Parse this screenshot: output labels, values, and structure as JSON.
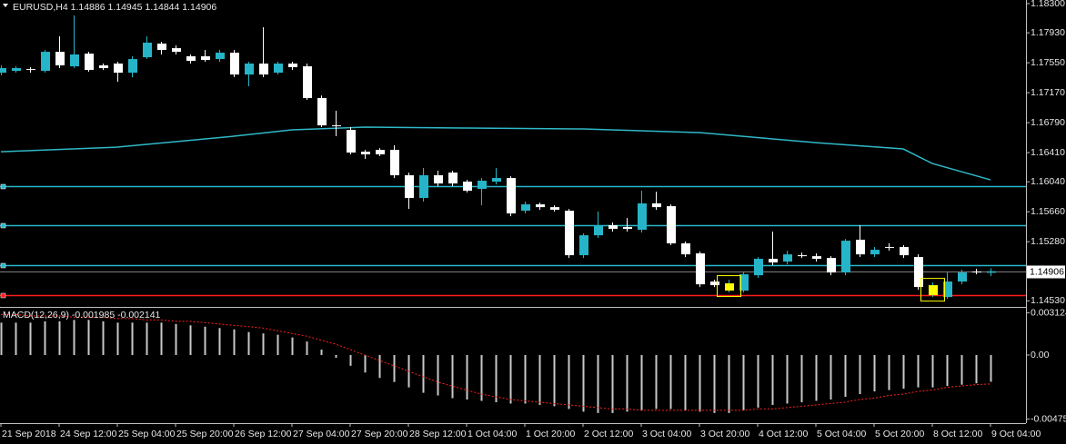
{
  "chart_data": [
    {
      "type": "candlestick",
      "title": "EURUSD,H4",
      "open": [
        1.17424,
        1.17447,
        1.1747,
        1.17447,
        1.17689,
        1.17505,
        1.17666,
        1.17517,
        1.1754,
        1.17424,
        1.1762,
        1.17793,
        1.17735,
        1.17632,
        1.17632,
        1.17597,
        1.17678,
        1.17401,
        1.1754,
        1.17424,
        1.1754,
        1.17505,
        1.17102,
        1.16756,
        1.16699,
        1.16422,
        1.16445,
        1.16445,
        1.16123,
        1.15835,
        1.16123,
        1.16157,
        1.16042,
        1.1595,
        1.16042,
        1.16088,
        1.15673,
        1.15754,
        1.15719,
        1.15673,
        1.15109,
        1.15362,
        1.15489,
        1.15466,
        1.15431,
        1.15766,
        1.15731,
        1.15259,
        1.15132,
        1.14775,
        1.1466,
        1.1466,
        1.14855,
        1.15063,
        1.15028,
        1.15109,
        1.15097,
        1.15074,
        1.1489,
        1.15305,
        1.1512,
        1.15213,
        1.15213,
        1.15086,
        1.14602,
        1.14579,
        1.14775,
        1.14902,
        1.14886
      ],
      "high": [
        1.17517,
        1.17505,
        1.17494,
        1.17712,
        1.17885,
        1.1815,
        1.17689,
        1.1754,
        1.17563,
        1.17632,
        1.17885,
        1.17816,
        1.1777,
        1.17655,
        1.17712,
        1.17712,
        1.17712,
        1.17563,
        1.18,
        1.17563,
        1.17563,
        1.1754,
        1.17136,
        1.16941,
        1.16733,
        1.16445,
        1.16468,
        1.16503,
        1.16157,
        1.16215,
        1.1618,
        1.1618,
        1.16065,
        1.16088,
        1.16215,
        1.16111,
        1.15789,
        1.15777,
        1.15742,
        1.15696,
        1.15385,
        1.15662,
        1.15524,
        1.15581,
        1.15927,
        1.15915,
        1.15754,
        1.15282,
        1.15155,
        1.14798,
        1.14798,
        1.1489,
        1.15086,
        1.15408,
        1.15166,
        1.15143,
        1.15132,
        1.15097,
        1.15316,
        1.15489,
        1.15213,
        1.15259,
        1.15236,
        1.1512,
        1.14763,
        1.1489,
        1.14925,
        1.14936,
        1.14945
      ],
      "low": [
        1.1739,
        1.17424,
        1.17424,
        1.17424,
        1.17482,
        1.17482,
        1.17436,
        1.17459,
        1.17309,
        1.17367,
        1.17597,
        1.17655,
        1.17655,
        1.1754,
        1.17563,
        1.17563,
        1.17367,
        1.17252,
        1.17367,
        1.17401,
        1.17459,
        1.17079,
        1.16733,
        1.16618,
        1.16388,
        1.1633,
        1.16365,
        1.16088,
        1.15696,
        1.15789,
        1.15984,
        1.15984,
        1.15904,
        1.15742,
        1.16007,
        1.15604,
        1.15639,
        1.15685,
        1.15662,
        1.15074,
        1.15074,
        1.15328,
        1.15408,
        1.15408,
        1.15397,
        1.15685,
        1.15236,
        1.15086,
        1.14706,
        1.14706,
        1.14637,
        1.14637,
        1.14821,
        1.14982,
        1.14994,
        1.15074,
        1.15028,
        1.14855,
        1.14855,
        1.15086,
        1.15086,
        1.15166,
        1.15074,
        1.14671,
        1.14579,
        1.14556,
        1.1474,
        1.14867,
        1.14844
      ],
      "close": [
        1.17482,
        1.17482,
        1.17459,
        1.17689,
        1.17517,
        1.17655,
        1.17459,
        1.17482,
        1.17424,
        1.17597,
        1.17805,
        1.17712,
        1.17689,
        1.17574,
        1.17586,
        1.17678,
        1.17401,
        1.1754,
        1.17401,
        1.1754,
        1.17494,
        1.17102,
        1.16756,
        1.16745,
        1.16411,
        1.16388,
        1.16388,
        1.16123,
        1.15835,
        1.16123,
        1.16019,
        1.16019,
        1.15927,
        1.16054,
        1.16088,
        1.15639,
        1.15754,
        1.15719,
        1.15685,
        1.15109,
        1.15362,
        1.15489,
        1.15443,
        1.15443,
        1.15766,
        1.15719,
        1.15259,
        1.1512,
        1.1474,
        1.14729,
        1.14752,
        1.14867,
        1.15063,
        1.15017,
        1.1512,
        1.15097,
        1.15063,
        1.1489,
        1.15293,
        1.1512,
        1.15178,
        1.15201,
        1.15109,
        1.14706,
        1.14729,
        1.14775,
        1.1489,
        1.1489,
        1.14906
      ],
      "up_color": "#26b5c8",
      "down_color": "#ffffff",
      "ylim": [
        1.14465,
        1.18346
      ],
      "yticks": [
        {
          "value": 1.183,
          "label": "1.18300"
        },
        {
          "value": 1.1793,
          "label": "1.17930"
        },
        {
          "value": 1.1755,
          "label": "1.17550"
        },
        {
          "value": 1.1717,
          "label": "1.17170"
        },
        {
          "value": 1.1679,
          "label": "1.16790"
        },
        {
          "value": 1.1641,
          "label": "1.16410"
        },
        {
          "value": 1.1604,
          "label": "1.16040"
        },
        {
          "value": 1.1566,
          "label": "1.15660"
        },
        {
          "value": 1.1528,
          "label": "1.15280"
        },
        {
          "value": 1.1453,
          "label": "1.14530"
        }
      ],
      "xticks": [
        {
          "value": 0,
          "label": "21 Sep 2018"
        },
        {
          "value": 4,
          "label": "24 Sep 12:00"
        },
        {
          "value": 8,
          "label": "25 Sep 04:00"
        },
        {
          "value": 12,
          "label": "25 Sep 20:00"
        },
        {
          "value": 16,
          "label": "26 Sep 12:00"
        },
        {
          "value": 20,
          "label": "27 Sep 04:00"
        },
        {
          "value": 24,
          "label": "27 Sep 20:00"
        },
        {
          "value": 28,
          "label": "28 Sep 12:00"
        },
        {
          "value": 32,
          "label": "1 Oct 04:00"
        },
        {
          "value": 36,
          "label": "1 Oct 20:00"
        },
        {
          "value": 40,
          "label": "2 Oct 12:00"
        },
        {
          "value": 44,
          "label": "3 Oct 04:00"
        },
        {
          "value": 48,
          "label": "3 Oct 20:00"
        },
        {
          "value": 52,
          "label": "4 Oct 12:00"
        },
        {
          "value": 56,
          "label": "5 Oct 04:00"
        },
        {
          "value": 60,
          "label": "5 Oct 20:00"
        },
        {
          "value": 64,
          "label": "8 Oct 12:00"
        },
        {
          "value": 68,
          "label": "9 Oct 04:00"
        }
      ],
      "ma": {
        "x": [
          0,
          8,
          16,
          20,
          25,
          32,
          40,
          48,
          56,
          62,
          64,
          68
        ],
        "values": [
          1.16422,
          1.1648,
          1.16618,
          1.16699,
          1.16733,
          1.16722,
          1.1671,
          1.16664,
          1.16537,
          1.16457,
          1.16272,
          1.16065
        ],
        "color": "#2fb8c8"
      },
      "levels": [
        {
          "value": 1.15984,
          "color": "#26b5c8"
        },
        {
          "value": 1.15489,
          "color": "#26b5c8"
        },
        {
          "value": 1.14982,
          "color": "#26b5c8"
        },
        {
          "value": 1.14602,
          "color": "#ff1a1a"
        }
      ],
      "price_label": {
        "value": 1.14906,
        "label": "1.14906"
      },
      "highlights": [
        50,
        64
      ],
      "highlight_color": "#ffff00"
    },
    {
      "type": "macd",
      "title": "MACD(12,26,9)",
      "values": [
        0.0024,
        0.0024,
        0.0024,
        0.0025,
        0.0025,
        0.0026,
        0.0026,
        0.0025,
        0.0024,
        0.0024,
        0.0024,
        0.0024,
        0.0023,
        0.0022,
        0.0021,
        0.002,
        0.0019,
        0.0017,
        0.0016,
        0.0015,
        0.0013,
        0.001,
        0.0004,
        -0.0002,
        -0.0008,
        -0.0013,
        -0.0017,
        -0.002,
        -0.0024,
        -0.0028,
        -0.003,
        -0.0032,
        -0.0033,
        -0.0034,
        -0.0035,
        -0.0036,
        -0.0036,
        -0.0037,
        -0.0038,
        -0.004,
        -0.0042,
        -0.0043,
        -0.0043,
        -0.0042,
        -0.0041,
        -0.004,
        -0.004,
        -0.0041,
        -0.0042,
        -0.0043,
        -0.0043,
        -0.0041,
        -0.0039,
        -0.0037,
        -0.0036,
        -0.0035,
        -0.0034,
        -0.0033,
        -0.0031,
        -0.0029,
        -0.0027,
        -0.0026,
        -0.0025,
        -0.0024,
        -0.0024,
        -0.0023,
        -0.0022,
        -0.0021,
        -0.001985
      ],
      "signal": [
        0.003,
        0.003,
        0.0029,
        0.0029,
        0.0029,
        0.0028,
        0.0028,
        0.0028,
        0.0027,
        0.0027,
        0.0026,
        0.0026,
        0.0025,
        0.0025,
        0.0024,
        0.0023,
        0.0022,
        0.0021,
        0.002,
        0.0018,
        0.0016,
        0.0014,
        0.0011,
        0.0008,
        0.0004,
        0,
        -0.0004,
        -0.0008,
        -0.0012,
        -0.0016,
        -0.002,
        -0.0023,
        -0.0026,
        -0.0029,
        -0.0031,
        -0.0033,
        -0.0034,
        -0.0035,
        -0.0036,
        -0.0037,
        -0.0038,
        -0.0039,
        -0.004,
        -0.004,
        -0.0041,
        -0.0041,
        -0.0041,
        -0.0041,
        -0.0041,
        -0.0041,
        -0.0041,
        -0.0041,
        -0.004,
        -0.004,
        -0.0039,
        -0.0038,
        -0.0037,
        -0.0036,
        -0.0035,
        -0.0033,
        -0.0032,
        -0.003,
        -0.0029,
        -0.0027,
        -0.0026,
        -0.0024,
        -0.0023,
        -0.0022,
        -0.002141
      ],
      "color": "#c8c8c8",
      "signal_color": "#ff2020",
      "ylim": [
        -0.00505,
        0.0035
      ],
      "yticks": [
        0.003124,
        {
          "value": 0,
          "label": "0.00"
        },
        {
          "value": -0.00475,
          "label": "-0.004750"
        }
      ]
    }
  ]
}
